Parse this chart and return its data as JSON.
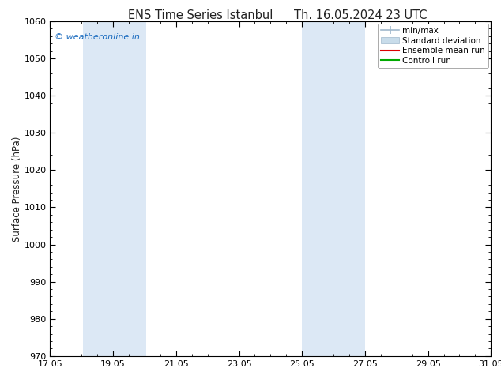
{
  "title_left": "ENS Time Series Istanbul",
  "title_right": "Th. 16.05.2024 23 UTC",
  "ylabel": "Surface Pressure (hPa)",
  "ylim": [
    970,
    1060
  ],
  "yticks": [
    970,
    980,
    990,
    1000,
    1010,
    1020,
    1030,
    1040,
    1050,
    1060
  ],
  "xlim": [
    0,
    14
  ],
  "xtick_positions": [
    0,
    2,
    4,
    6,
    8,
    10,
    12,
    14
  ],
  "xtick_labels": [
    "17.05",
    "19.05",
    "21.05",
    "23.05",
    "25.05",
    "27.05",
    "29.05",
    "31.05"
  ],
  "shaded_bands": [
    {
      "xmin": 1.05,
      "xmax": 3.05
    },
    {
      "xmin": 8.0,
      "xmax": 10.0
    },
    {
      "xmin": 14.0,
      "xmax": 14.5
    }
  ],
  "band_color": "#dce8f5",
  "background_color": "#ffffff",
  "plot_bg_color": "#ffffff",
  "watermark": "© weatheronline.in",
  "watermark_color": "#1a6bbf",
  "legend_items": [
    {
      "label": "min/max"
    },
    {
      "label": "Standard deviation"
    },
    {
      "label": "Ensemble mean run"
    },
    {
      "label": "Controll run"
    }
  ],
  "minmax_color": "#a0b8cc",
  "std_color": "#c8dcea",
  "ens_color": "#dd0000",
  "ctrl_color": "#00aa00",
  "font_color": "#222222",
  "tick_color": "#000000",
  "spine_color": "#000000",
  "title_fontsize": 10.5,
  "axis_fontsize": 8.5,
  "tick_fontsize": 8,
  "legend_fontsize": 7.5
}
